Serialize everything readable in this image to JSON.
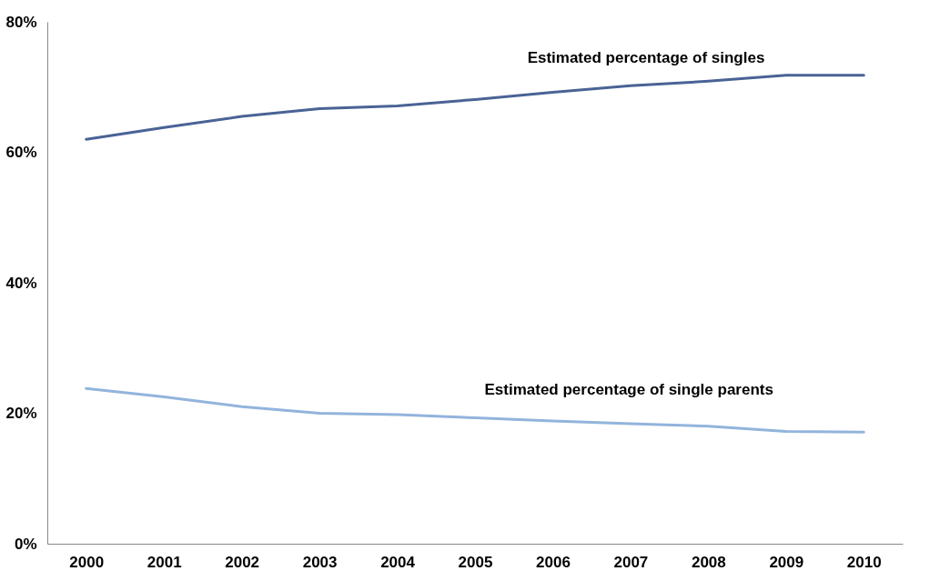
{
  "chart_data": {
    "type": "line",
    "categories": [
      "2000",
      "2001",
      "2002",
      "2003",
      "2004",
      "2005",
      "2006",
      "2007",
      "2008",
      "2009",
      "2010"
    ],
    "series": [
      {
        "color": "#4a6396",
        "values": [
          62.0,
          63.8,
          65.5,
          66.7,
          67.1,
          68.1,
          69.2,
          70.2,
          70.9,
          71.8,
          71.8
        ]
      },
      {
        "color": "#92b4dc",
        "values": [
          23.8,
          22.5,
          21.0,
          20.0,
          19.8,
          19.3,
          18.8,
          18.4,
          18.0,
          17.2,
          17.1
        ]
      }
    ],
    "ylim": [
      0,
      80
    ],
    "yticks": [
      {
        "value": 0,
        "label": "0%"
      },
      {
        "value": 20,
        "label": "20%"
      },
      {
        "value": 40,
        "label": "40%"
      },
      {
        "value": 60,
        "label": "60%"
      },
      {
        "value": 80,
        "label": "80%"
      }
    ],
    "annotations": [
      "Estimated percentage of singles",
      "Estimated percentage of single parents"
    ],
    "grid": false,
    "marker": "none",
    "line_style": "solid"
  }
}
